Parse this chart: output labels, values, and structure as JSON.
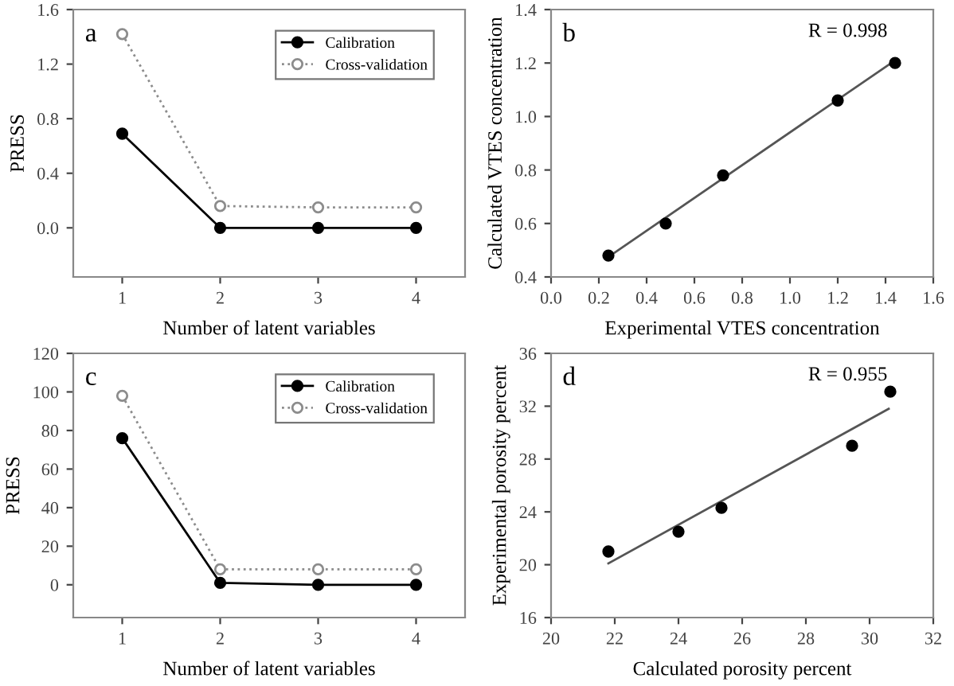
{
  "chart_data": [
    {
      "type": "line",
      "xlabel": "Number of latent variables",
      "ylabel": "PRESS",
      "annotations": [
        "a"
      ],
      "x": [
        1,
        2,
        3,
        4
      ],
      "xlim": [
        0.5,
        4.5
      ],
      "xticks": [
        1,
        2,
        3,
        4
      ],
      "ylim": [
        -0.36,
        1.6
      ],
      "yticks": [
        {
          "value": 0,
          "label": "0.0"
        },
        0.4,
        0.8,
        1.2,
        1.6
      ],
      "grid": false,
      "legend": "top right",
      "series": [
        {
          "name": "Calibration",
          "color": "#000000",
          "values": [
            0.69,
            0,
            0,
            0
          ],
          "marker": "circle",
          "line_style": "solid"
        },
        {
          "name": "Cross-validation",
          "color": "#8c8c8c",
          "values": [
            1.42,
            0.16,
            0.15,
            0.15
          ],
          "marker": "circle",
          "line_style": "dotted"
        }
      ]
    },
    {
      "type": "scatter",
      "xlabel": "Experimental VTES concentration",
      "ylabel": "Calculated VTES concentration",
      "annotations": [
        "b",
        "R = 0.998"
      ],
      "xlim": [
        0,
        1.6
      ],
      "xticks": [
        {
          "value": 0,
          "label": "0.0"
        },
        0.2,
        0.4,
        0.6,
        0.8,
        {
          "value": 1,
          "label": "1.0"
        },
        1.2,
        1.4,
        1.6
      ],
      "ylim": [
        0.4,
        1.4
      ],
      "yticks": [
        0.4,
        0.6,
        0.8,
        {
          "value": 1,
          "label": "1.0"
        },
        1.2,
        1.4
      ],
      "grid": false,
      "legend": false,
      "series": [
        {
          "color": "#000000",
          "x": [
            0.24,
            0.48,
            0.72,
            1.2,
            1.44
          ],
          "values": [
            0.48,
            0.6,
            0.78,
            1.06,
            1.2
          ],
          "marker": "circle"
        },
        {
          "type": "line",
          "color": "#555555",
          "x": [
            0.24,
            1.44
          ],
          "values": [
            0.475,
            1.21
          ],
          "marker": "none",
          "line_style": "solid"
        }
      ]
    },
    {
      "type": "line",
      "xlabel": "Number of latent variables",
      "ylabel": "PRESS",
      "annotations": [
        "c"
      ],
      "x": [
        1,
        2,
        3,
        4
      ],
      "xlim": [
        0.5,
        4.5
      ],
      "xticks": [
        1,
        2,
        3,
        4
      ],
      "ylim": [
        -17,
        120
      ],
      "yticks": [
        0,
        20,
        40,
        60,
        80,
        100,
        120
      ],
      "grid": false,
      "legend": "top right",
      "series": [
        {
          "name": "Calibration",
          "color": "#000000",
          "values": [
            76,
            1,
            0,
            0
          ],
          "marker": "circle",
          "line_style": "solid"
        },
        {
          "name": "Cross-validation",
          "color": "#8c8c8c",
          "values": [
            98,
            8,
            8,
            8
          ],
          "marker": "circle",
          "line_style": "dotted"
        }
      ]
    },
    {
      "type": "scatter",
      "xlabel": "Calculated porosity percent",
      "ylabel": "Experimental porosity percent",
      "annotations": [
        "d",
        "R = 0.955"
      ],
      "xlim": [
        20,
        32
      ],
      "xticks": [
        20,
        22,
        24,
        26,
        28,
        30,
        32
      ],
      "ylim": [
        16,
        36
      ],
      "yticks": [
        16,
        20,
        24,
        28,
        32,
        36
      ],
      "grid": false,
      "legend": false,
      "series": [
        {
          "color": "#000000",
          "x": [
            21.8,
            24,
            25.35,
            29.45,
            30.65
          ],
          "values": [
            21,
            22.5,
            24.3,
            29,
            33.1
          ],
          "marker": "circle"
        },
        {
          "type": "line",
          "color": "#555555",
          "x": [
            21.8,
            30.6
          ],
          "values": [
            20.1,
            31.8
          ],
          "marker": "none",
          "line_style": "solid"
        }
      ]
    }
  ]
}
